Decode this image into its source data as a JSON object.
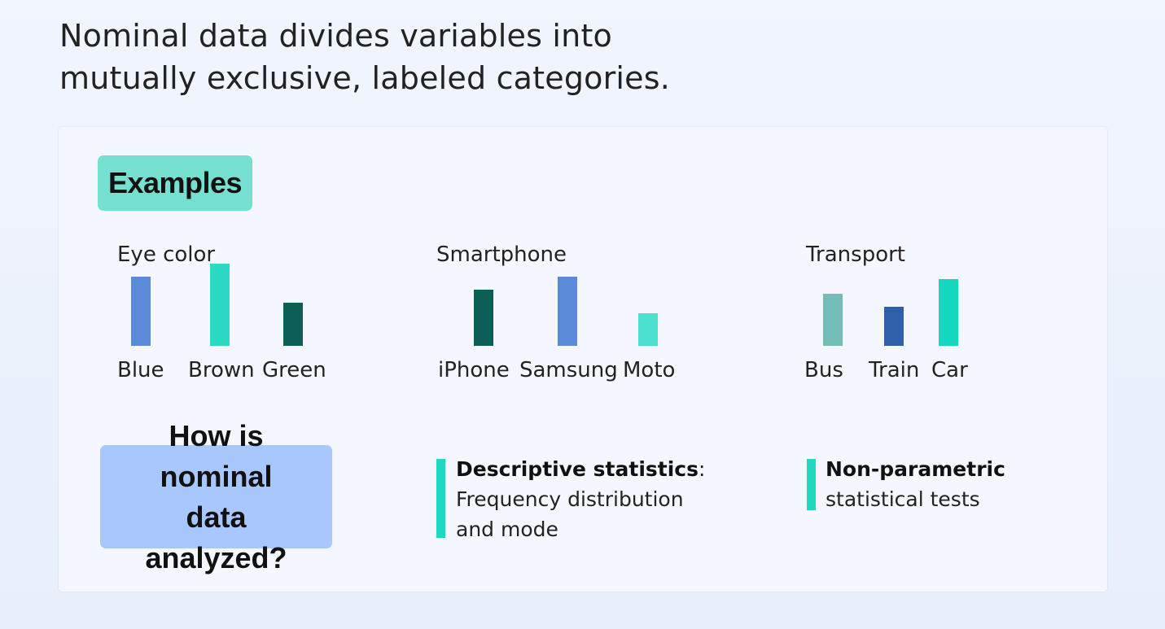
{
  "headline": {
    "line1": "Nominal data divides variables into",
    "line2": "mutually exclusive, labeled categories."
  },
  "examples_label": "Examples",
  "chart_data": [
    {
      "type": "bar",
      "title": "Eye color",
      "categories": [
        "Blue",
        "Brown",
        "Green"
      ],
      "values": [
        5.3,
        6.3,
        3.3
      ],
      "colors": [
        "#5b8ad8",
        "#2bd9c5",
        "#0c5e57"
      ],
      "ylim": [
        0,
        7
      ]
    },
    {
      "type": "bar",
      "title": "Smartphone",
      "categories": [
        "iPhone",
        "Samsung",
        "Moto"
      ],
      "values": [
        4.3,
        5.3,
        2.5
      ],
      "colors": [
        "#0c5e57",
        "#5b8ad8",
        "#4ddfd0"
      ],
      "ylim": [
        0,
        7
      ]
    },
    {
      "type": "bar",
      "title": "Transport",
      "categories": [
        "Bus",
        "Train",
        "Car"
      ],
      "values": [
        4.0,
        3.0,
        5.1
      ],
      "colors": [
        "#74bcb7",
        "#2f5fa8",
        "#13d7bf"
      ],
      "ylim": [
        0,
        7
      ]
    }
  ],
  "question": {
    "line1": "How is nominal",
    "line2": "data analyzed?"
  },
  "analysis": {
    "descriptive": {
      "bold": "Descriptive statistics",
      "colon": ":",
      "line2": "Frequency distribution",
      "line3": "and mode"
    },
    "nonparametric": {
      "bold": "Non-parametric",
      "line2": "statistical tests"
    }
  },
  "colors": {
    "examples_badge": "#76e0d0",
    "question_badge": "#a8c7fc",
    "accent_bar": "#20d8c0"
  }
}
